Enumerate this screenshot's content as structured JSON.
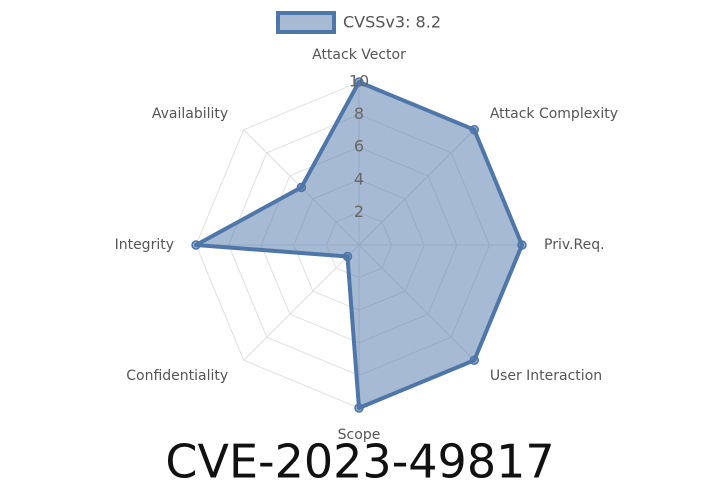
{
  "chart_data": {
    "type": "radar",
    "title": "CVE-2023-49817",
    "categories": [
      "Attack Vector",
      "Attack Complexity",
      "Priv.Req.",
      "User Interaction",
      "Scope",
      "Confidentiality",
      "Integrity",
      "Availability"
    ],
    "series": [
      {
        "name": "CVSSv3: 8.2",
        "color": "#4e76a8",
        "values": [
          10,
          10,
          10,
          10,
          10,
          1,
          10,
          5
        ]
      }
    ],
    "rlim": [
      0,
      10
    ],
    "rticks": [
      2,
      4,
      6,
      8,
      10
    ],
    "grid": true,
    "legend": "top"
  }
}
